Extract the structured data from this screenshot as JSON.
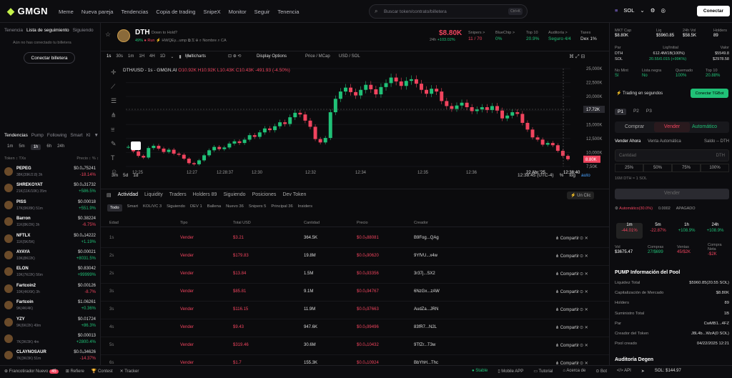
{
  "app": {
    "logo": "GMGN"
  },
  "nav": [
    "Meme",
    "Nueva pareja",
    "Tendencias",
    "Copia de trading",
    "SnipeX",
    "Monitor",
    "Seguir",
    "Tenencia"
  ],
  "search": {
    "placeholder": "Buscar token/contrato/billetera",
    "shortcut": "Ctrl+K"
  },
  "topright": {
    "chain": "SOL",
    "connect": "Conectar"
  },
  "left": {
    "tabs": [
      "Tenencia",
      "Lista de seguimiento",
      "Siguiendo"
    ],
    "msg": "Aún no has conectado tu billetera",
    "connect": "Conectar billetera",
    "trend_tabs": [
      "Tendencias",
      "Pump",
      "Following",
      "Smart",
      "Kl"
    ],
    "tf_tabs": [
      "1m",
      "5m",
      "1h",
      "6h",
      "24h"
    ],
    "head_left": "Token ↕ TXs",
    "head_right": "Precio ↕ % ↕",
    "tokens": [
      {
        "name": "PEPEG",
        "sub": "38K(39K/2.8)  3h",
        "price": "$0.0₄75241",
        "pct": "-18.14%",
        "up": false
      },
      {
        "name": "SHREKOYAT",
        "sub": "21K(11K/10K)  35m",
        "price": "$0.0₄31732",
        "pct": "+586.5%",
        "up": true
      },
      {
        "name": "PISS",
        "sub": "17K(9K/8K)  51m",
        "price": "$0.00018",
        "pct": "+551.9%",
        "up": true
      },
      {
        "name": "Barron",
        "sub": "11K(8K/2K)  3h",
        "price": "$0.38224",
        "pct": "-6.75%",
        "up": false
      },
      {
        "name": "NFTLX",
        "sub": "11K(5K/5K)",
        "price": "$0.0₄14222",
        "pct": "+1.19%",
        "up": true
      },
      {
        "name": "AYAYA",
        "sub": "10K(8K/2K)",
        "price": "$0.00021",
        "pct": "+8031.5%",
        "up": true
      },
      {
        "name": "ELON",
        "sub": "10K(7K/2K)  56m",
        "price": "$0.83042",
        "pct": "+99999%",
        "up": true
      },
      {
        "name": "Fartcoin2",
        "sub": "10K(4K/6K)  3h",
        "price": "$0.00126",
        "pct": "-8.7%",
        "up": false
      },
      {
        "name": "Fartcoin",
        "sub": "9K(4K/4K)",
        "price": "$1.06261",
        "pct": "+0.36%",
        "up": true
      },
      {
        "name": "YZY",
        "sub": "9K(6K/2K)  49m",
        "price": "$0.01724",
        "pct": "+86.3%",
        "up": true
      },
      {
        "name": "",
        "sub": "7K(3K/3K)  4m",
        "price": "$0.00013",
        "pct": "+2800.4%",
        "up": true
      },
      {
        "name": "CLAYNOSAUR",
        "sub": "7K(3K/3K)  51m",
        "price": "$0.0₄34626",
        "pct": "-14.37%",
        "up": false
      }
    ]
  },
  "token": {
    "symbol": "DTH",
    "desc": "Down to Hold?",
    "pct": "49%",
    "run": "Run",
    "addr": "HWQEy...ump",
    "name_label": "Nombre",
    "ca": "CA",
    "price": "$8.80K",
    "price_label": "24h",
    "change": "+103.02%",
    "stats": [
      {
        "label": "Snipers >",
        "value": "11 / 70"
      },
      {
        "label": "BlueChip >",
        "value": "0%"
      },
      {
        "label": "Top 10",
        "value": "20.9%"
      },
      {
        "label": "Auditoría >",
        "value": "Seguro 4/4"
      },
      {
        "label": "Taxes",
        "value": "Dex 1%"
      }
    ]
  },
  "toolbar": {
    "tfs": [
      "1s",
      "30s",
      "1m",
      "1H",
      "4H",
      "1D"
    ],
    "multicharts": "Multicharts",
    "display": "Display Options",
    "price": "Price / MCap",
    "usd": "USD / SOL"
  },
  "chart_data": {
    "type": "line",
    "title": "DTH/USD - 1s - GMGN.AI",
    "ohlc": "O10.92K H10.92K L10.43K C10.43K -491.93 (-4.50%)",
    "x_ticks": [
      "12:25",
      "12:27",
      "12:28:37",
      "12:30",
      "12:32",
      "12:34",
      "12:35",
      "12:36",
      "22 Abr '25",
      "12:38:40"
    ],
    "y_ticks": [
      "25,000K",
      "22,500K",
      "20,000K",
      "17,500K",
      "15,000K",
      "12,500K",
      "10,000K",
      "7,50K"
    ],
    "ylim": [
      7500,
      25000
    ],
    "crosshair_label": "17.72K",
    "last_label": "8.80K",
    "values": [
      11000,
      10200,
      9400,
      9100,
      10800,
      11200,
      10700,
      10100,
      10500,
      9800,
      9600,
      8900,
      8100,
      7900,
      8600,
      9500,
      10400,
      11000,
      10600,
      10900,
      11600,
      12000,
      11700,
      12300,
      13100,
      12800,
      13600,
      14300,
      14000,
      14700,
      15400,
      15100,
      16300,
      17100,
      16800,
      15700,
      14600,
      12400,
      11800,
      12600,
      17200,
      19600,
      20900,
      21600,
      20800,
      20200,
      21200,
      22100,
      21300,
      20400,
      21700,
      22400,
      23400,
      22700,
      21900,
      22800,
      23100,
      22300,
      21200,
      20500,
      21400,
      20900,
      19200,
      18300,
      17800,
      18400,
      18900,
      18100,
      17400,
      17700,
      18100,
      17600,
      18300,
      17500,
      16100,
      16600,
      17200,
      16900,
      15300,
      14100,
      12700,
      12300,
      11400,
      11700,
      11300,
      10300,
      9400,
      8800
    ],
    "bottom": {
      "range": [
        "3m",
        "5d",
        "1d"
      ],
      "clock": "12:38:45 (UTC-4)",
      "opts": [
        "%",
        "log",
        "auto"
      ]
    }
  },
  "activity": {
    "tabs": [
      "Actividad",
      "Liquidity",
      "Traders",
      "Holders 89",
      "Siguiendo",
      "Posiciones",
      "Dev Token"
    ],
    "subtabs": [
      "Todo",
      "Smart",
      "KOL/VC 3",
      "Siguiendo",
      "DEV 1",
      "Ballena",
      "Nuevo 36",
      "Snipers 5",
      "Principal 36",
      "Insiders"
    ],
    "headers": [
      "Edad",
      "Tipo",
      "Total USD",
      "Cantidad",
      "Precio",
      "Creador"
    ],
    "share": "Compartir",
    "rows": [
      {
        "age": "1s",
        "type": "Vender",
        "usd": "$3.21",
        "qty": "364.5K",
        "price": "$0.0₅88081",
        "maker": "B9Fog...QAg"
      },
      {
        "age": "2s",
        "type": "Vender",
        "usd": "$179.83",
        "qty": "19.8M",
        "price": "$0.0₅90620",
        "maker": "9YfVU...x4w"
      },
      {
        "age": "2s",
        "type": "Vender",
        "usd": "$13.84",
        "qty": "1.5M",
        "price": "$0.0₅93356",
        "maker": "3r37j...SX2"
      },
      {
        "age": "3s",
        "type": "Vender",
        "usd": "$85.81",
        "qty": "9.1M",
        "price": "$0.0₅94767",
        "maker": "6NzGx...zAW"
      },
      {
        "age": "3s",
        "type": "Vender",
        "usd": "$116.15",
        "qty": "11.9M",
        "price": "$0.0₅97663",
        "maker": "AudZa...JRN"
      },
      {
        "age": "4s",
        "type": "Vender",
        "usd": "$9.43",
        "qty": "947.6K",
        "price": "$0.0₅99496",
        "maker": "83fR7...N2L"
      },
      {
        "age": "5s",
        "type": "Vender",
        "usd": "$319.46",
        "qty": "30.6M",
        "price": "$0.0₄10432",
        "maker": "9TfZr...T3w"
      },
      {
        "age": "6s",
        "type": "Vender",
        "usd": "$1.7",
        "qty": "155.3K",
        "price": "$0.0₄10924",
        "maker": "BbYhH...Thc"
      }
    ],
    "unclic": "Un Clic"
  },
  "right": {
    "grid1": [
      {
        "l": "MKT Cap",
        "v": "$8.80K"
      },
      {
        "l": "Liq",
        "v": "$5960.85"
      },
      {
        "l": "24h Vol",
        "v": "$58.5K"
      },
      {
        "l": "Holders",
        "v": "89"
      }
    ],
    "pair": [
      {
        "l": "Par",
        "v": ""
      },
      {
        "l": "Liq/Initial",
        "v": ""
      },
      {
        "l": "Valor",
        "v": ""
      }
    ],
    "pair_rows": [
      [
        "DTH",
        "612.4M/1B(100%)",
        "$5549.8"
      ],
      [
        "SOL",
        "20.55/0.015 (+99K%)",
        "$2978.58"
      ]
    ],
    "grid2": [
      {
        "l": "No Mint",
        "v": "Sí"
      },
      {
        "l": "Lista negra",
        "v": "No"
      },
      {
        "l": "Quemado",
        "v": "100%"
      },
      {
        "l": "Top 10",
        "v": "20.88%"
      }
    ],
    "trading": "Trading en segundos",
    "tg": "Conectar TGBot",
    "presets": [
      "P1",
      "P2",
      "P3"
    ],
    "buy": "Comprar",
    "sell": "Vender",
    "auto": "Automático",
    "sell_now": "Vender Ahora",
    "sell_auto": "Venta Automática",
    "balance": "Saldo -- DTH",
    "qty_label": "Cantidad",
    "qty_unit": "DTH",
    "pcts": [
      "25%",
      "50%",
      "75%",
      "100%"
    ],
    "conv": "16M DTH ≈ 1 SOL",
    "sell_btn": "Vender",
    "auto_line": [
      "Automático(30.0%)",
      "0.0002",
      "APAGADO"
    ],
    "tfs": [
      {
        "l": "1m",
        "v": "-44.01%"
      },
      {
        "l": "5m",
        "v": "-22.87%"
      },
      {
        "l": "1h",
        "v": "+108.9%"
      },
      {
        "l": "24h",
        "v": "+108.9%"
      }
    ],
    "vol": [
      {
        "l": "Vol",
        "v": "$3675.47"
      },
      {
        "l": "Compras",
        "v": "27/$699"
      },
      {
        "l": "Ventas",
        "v": "45/$2K"
      },
      {
        "l": "Compra Neta",
        "v": "-$2K"
      }
    ],
    "pool_title": "PUMP Información del Pool",
    "pool": [
      [
        "Liquidez Total",
        "$5960.85(20.55 SOL)"
      ],
      [
        "Capitalización de Mercado",
        "$8.80K"
      ],
      [
        "Holders",
        "89"
      ],
      [
        "Suministro Total",
        "1B"
      ],
      [
        "Par",
        "CwMB1...4FZ"
      ],
      [
        "Creador del Token",
        "J8L4b...WzA(0 SOL)"
      ],
      [
        "Pool creado",
        "04/22/2025 12:21"
      ]
    ],
    "audit": "Auditoría Degen"
  },
  "bottom": {
    "items": [
      "Francotirador Nuevo",
      "Refiere",
      "Contest",
      "Tracker"
    ],
    "badge": "45",
    "stable": "Stable",
    "mobile": "Mobile APP",
    "tutorial": "Tutorial",
    "about": "Acerca de",
    "bot": "Bot",
    "api": "API",
    "sol": "SOL: $144.97"
  }
}
